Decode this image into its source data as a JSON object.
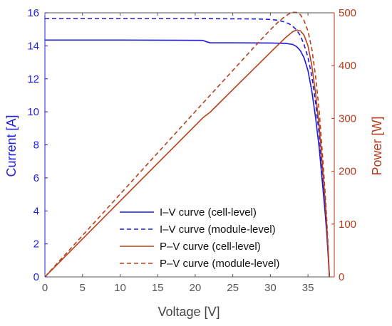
{
  "chart_data": {
    "type": "line",
    "xlabel": "Voltage [V]",
    "ylabel_left": "Current [A]",
    "ylabel_right": "Power [W]",
    "xlim": [
      0,
      38.5
    ],
    "ylim_left": [
      0,
      16
    ],
    "ylim_right": [
      0,
      500
    ],
    "xticks": [
      0,
      5,
      10,
      15,
      20,
      25,
      30,
      35
    ],
    "yticks_left": [
      0,
      2,
      4,
      6,
      8,
      10,
      12,
      14,
      16
    ],
    "yticks_right": [
      0,
      100,
      200,
      300,
      400,
      500
    ],
    "colors": {
      "left_axis": "#1f1fe0",
      "right_axis": "#b23a1a",
      "iv": "#1a1ae0",
      "pv": "#b8401a"
    },
    "legend_position": "bottom-right",
    "series": [
      {
        "name": "I–V curve (cell-level)",
        "axis": "left",
        "style": "solid",
        "x": [
          0,
          10,
          21,
          21.5,
          22,
          25,
          30,
          32,
          33,
          33.5,
          34,
          34.5,
          35,
          35.5,
          36,
          36.5,
          37,
          37.3,
          37.5,
          37.7,
          37.85
        ],
        "y": [
          14.35,
          14.35,
          14.33,
          14.25,
          14.18,
          14.18,
          14.17,
          14.15,
          14.08,
          13.95,
          13.7,
          13.25,
          12.5,
          11.3,
          9.7,
          7.8,
          5.3,
          3.8,
          2.6,
          1.2,
          0
        ]
      },
      {
        "name": "I–V curve (module-level)",
        "axis": "left",
        "style": "dashed",
        "x": [
          0,
          10,
          20,
          28,
          30,
          31,
          32,
          32.5,
          33,
          33.5,
          34,
          34.5,
          35,
          35.5,
          36,
          36.5,
          37,
          37.3,
          37.5,
          37.7,
          37.85
        ],
        "y": [
          15.65,
          15.65,
          15.65,
          15.63,
          15.6,
          15.55,
          15.43,
          15.33,
          15.18,
          14.95,
          14.6,
          14.05,
          13.3,
          12.2,
          10.6,
          8.6,
          5.9,
          4.2,
          2.9,
          1.4,
          0
        ]
      },
      {
        "name": "P–V curve (cell-level)",
        "axis": "right",
        "style": "solid",
        "x": [
          0,
          10,
          21,
          22,
          25,
          30,
          32,
          33,
          33.5,
          34,
          34.5,
          35,
          35.5,
          36,
          36.5,
          37,
          37.3,
          37.5,
          37.7,
          37.85
        ],
        "y": [
          0,
          143.5,
          301,
          312,
          354.5,
          425,
          452.8,
          464.6,
          467.3,
          465.8,
          457.1,
          437.5,
          401,
          349,
          285,
          196,
          142,
          97,
          45,
          0
        ]
      },
      {
        "name": "P–V curve (module-level)",
        "axis": "right",
        "style": "dashed",
        "x": [
          0,
          10,
          20,
          28,
          30,
          31,
          32,
          32.5,
          33,
          33.5,
          34,
          34.5,
          35,
          35.5,
          36,
          36.5,
          37,
          37.3,
          37.5,
          37.7,
          37.85
        ],
        "y": [
          0,
          156.5,
          313,
          437.6,
          468,
          482,
          493.8,
          498.2,
          501,
          500.8,
          496.4,
          484.7,
          465.5,
          433.1,
          381.6,
          313.9,
          218.3,
          156.7,
          108.8,
          52.8,
          0
        ]
      }
    ]
  }
}
